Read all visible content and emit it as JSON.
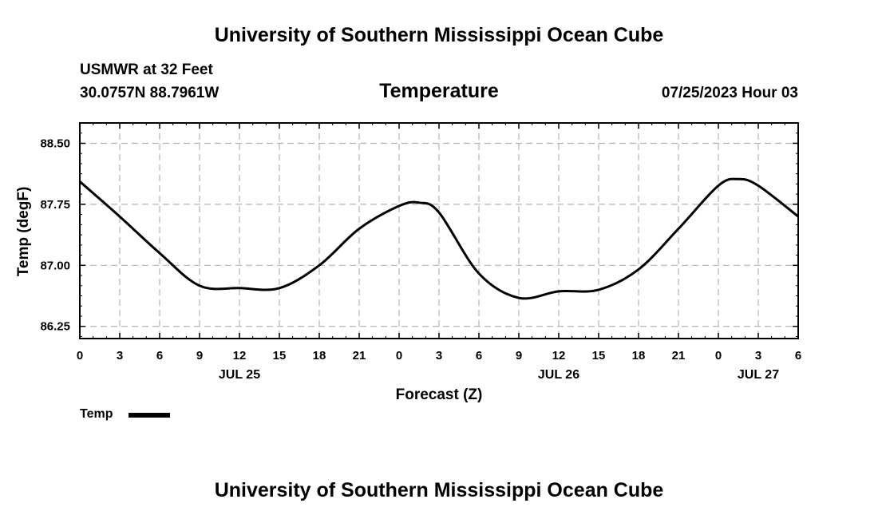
{
  "header": {
    "title": "University of Southern Mississippi Ocean Cube",
    "station": "USMWR at 32 Feet",
    "coordinates": "30.0757N  88.7961W",
    "datetime": "07/25/2023 Hour 03"
  },
  "footer": {
    "title": "University of Southern Mississippi Ocean Cube"
  },
  "legend": {
    "label": "Temp",
    "color": "#000000"
  },
  "chart_data": {
    "type": "line",
    "title": "Temperature",
    "xlabel": "Forecast (Z)",
    "ylabel": "Temp (degF)",
    "grid": true,
    "xlim": [
      0,
      54
    ],
    "ylim": [
      86.1,
      88.75
    ],
    "x_ticks": [
      0,
      3,
      6,
      9,
      12,
      15,
      18,
      21,
      24,
      27,
      30,
      33,
      36,
      39,
      42,
      45,
      48,
      51,
      54
    ],
    "x_tick_labels": [
      "0",
      "3",
      "6",
      "9",
      "12",
      "15",
      "18",
      "21",
      "0",
      "3",
      "6",
      "9",
      "12",
      "15",
      "18",
      "21",
      "0",
      "3",
      "6"
    ],
    "date_labels": [
      {
        "x": 12,
        "label": "JUL 25"
      },
      {
        "x": 36,
        "label": "JUL 26"
      },
      {
        "x": 51,
        "label": "JUL 27"
      }
    ],
    "y_ticks": [
      86.25,
      87.0,
      87.75,
      88.5
    ],
    "y_tick_labels": [
      "86.25",
      "87.00",
      "87.75",
      "88.50"
    ],
    "series": [
      {
        "name": "Temp",
        "color": "#000000",
        "x": [
          0,
          3,
          6,
          9,
          12,
          15,
          18,
          21,
          24,
          25.5,
          27,
          30,
          33,
          36,
          39,
          42,
          45,
          48,
          49.5,
          51,
          54
        ],
        "y": [
          88.03,
          87.6,
          87.15,
          86.75,
          86.72,
          86.72,
          87.0,
          87.45,
          87.73,
          87.77,
          87.65,
          86.9,
          86.6,
          86.68,
          86.7,
          86.95,
          87.45,
          87.98,
          88.06,
          87.98,
          87.6
        ]
      }
    ]
  }
}
